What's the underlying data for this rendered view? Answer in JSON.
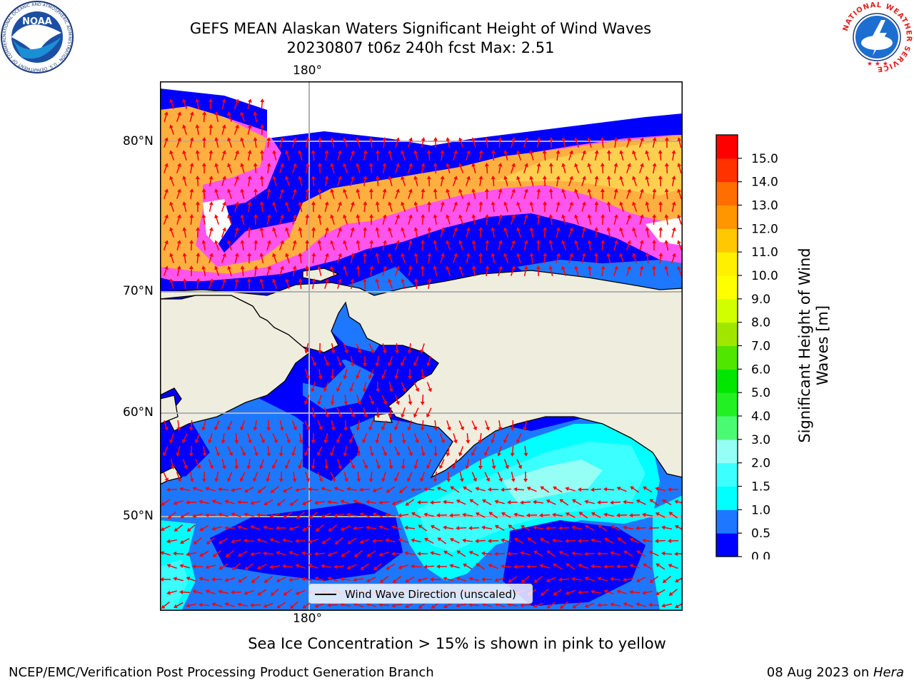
{
  "title": {
    "line1": "GEFS MEAN Alaskan Waters Significant Height of Wind Waves",
    "line2": "20230807 t06z 240h fcst   Max: 2.51"
  },
  "axes": {
    "lon_top": "180°",
    "lon_bottom": "180°",
    "lat_labels": [
      "80°N",
      "70°N",
      "60°N",
      "50°N"
    ]
  },
  "legend": {
    "label": "Wind Wave Direction (unscaled)"
  },
  "colorbar": {
    "label_line1": "Significant Height of Wind",
    "label_line2": "Waves [m]",
    "ticks": [
      "0.0",
      "0.5",
      "1.0",
      "1.5",
      "2.0",
      "3.0",
      "4.0",
      "5.0",
      "6.0",
      "7.0",
      "8.0",
      "9.0",
      "10.0",
      "11.0",
      "12.0",
      "13.0",
      "14.0",
      "15.0"
    ],
    "colors": [
      "#0000ff",
      "#1e78ff",
      "#00ffff",
      "#3cffff",
      "#96fff5",
      "#4bfa73",
      "#23f023",
      "#00e600",
      "#50e600",
      "#a0e600",
      "#d2ff00",
      "#ffff00",
      "#fff000",
      "#ffc800",
      "#ff9600",
      "#ff6e00",
      "#ff3200",
      "#ff0000"
    ]
  },
  "map_colors": {
    "land": "#efedde",
    "ice_pink": "#ff55ee",
    "ice_orange": "#ffb040",
    "ice_yellow": "#ffd050",
    "arrow": "#ff0000"
  },
  "note": "Sea Ice Concentration > 15% is shown in pink to yellow",
  "footer": {
    "left": "NCEP/EMC/Verification Post Processing Product Generation Branch",
    "right_prefix": "08 Aug 2023 on ",
    "right_host": "Hera"
  },
  "logos": {
    "noaa_text": "NOAA",
    "noaa_ring": "NATIONAL OCEANIC AND ATMOSPHERIC ADMINISTRATION · U.S. DEPARTMENT OF COMMERCE",
    "nws_ring": "NATIONAL WEATHER SERVICE"
  }
}
